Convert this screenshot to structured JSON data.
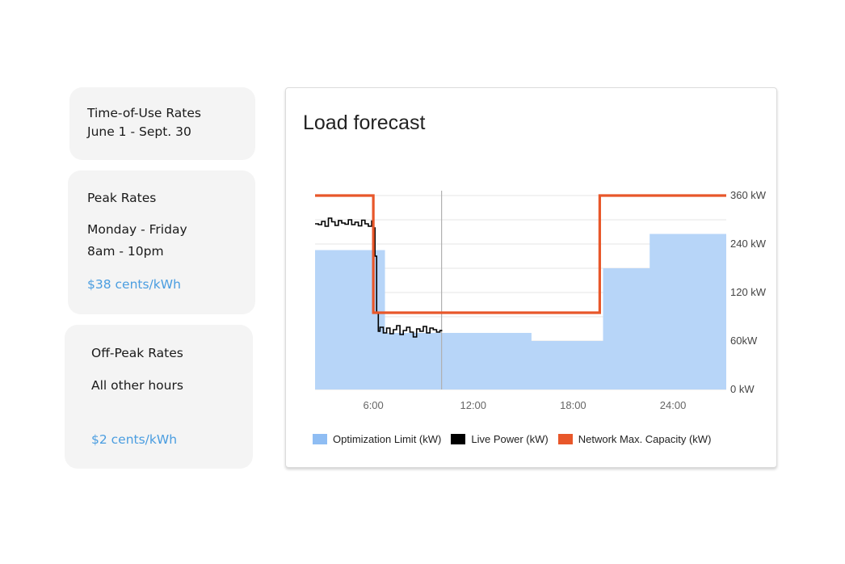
{
  "cards": {
    "tou": {
      "title": "Time-of-Use Rates",
      "dates": "June 1 - Sept. 30"
    },
    "peak": {
      "title": "Peak Rates",
      "days": "Monday - Friday",
      "hours": "8am - 10pm",
      "rate": "$38 cents/kWh"
    },
    "off_peak": {
      "title": "Off-Peak Rates",
      "hours": "All other hours",
      "rate": "$2 cents/kWh"
    }
  },
  "colors": {
    "optimization_fill": "#b7d5f8",
    "optimization_swatch": "#8fbdf3",
    "live_power": "#000000",
    "network_capacity": "#e8572a",
    "grid": "#e6e6e6",
    "now_line": "#b0b0b0",
    "rate_text": "#4a9de0"
  },
  "chart_data": {
    "type": "line",
    "title": "Load forecast",
    "xlim": [
      2.5,
      27.2
    ],
    "ylim": [
      0,
      360
    ],
    "x_ticks": [
      6,
      12,
      18,
      24
    ],
    "x_tick_labels": [
      "6:00",
      "12:00",
      "18:00",
      "24:00"
    ],
    "y_ticks": [
      0,
      60,
      120,
      240,
      360
    ],
    "y_tick_labels": [
      "0 kW",
      "60kW",
      "120 kW",
      "240 kW",
      "360 kW"
    ],
    "y_axis_position": "right",
    "grid": true,
    "now_marker_x": 10.1,
    "legend": {
      "placement": "bottom"
    },
    "series": [
      {
        "name": "Optimization Limit (kW)",
        "style": "step-area",
        "x": [
          2.5,
          3.2,
          6.7,
          15.5,
          19.8,
          22.6,
          27.2
        ],
        "values": [
          225,
          225,
          70,
          60,
          180,
          265,
          265
        ]
      },
      {
        "name": "Live Power (kW)",
        "style": "step-line",
        "x": [
          2.5,
          2.7,
          2.9,
          3.1,
          3.3,
          3.5,
          3.7,
          3.9,
          4.1,
          4.3,
          4.5,
          4.7,
          4.9,
          5.1,
          5.3,
          5.5,
          5.7,
          5.9,
          6.0,
          6.1,
          6.2,
          6.3,
          6.4,
          6.6,
          6.8,
          7.0,
          7.2,
          7.4,
          7.6,
          7.8,
          8.0,
          8.2,
          8.4,
          8.6,
          8.8,
          9.0,
          9.2,
          9.4,
          9.6,
          9.8,
          10.0,
          10.1
        ],
        "values": [
          290,
          288,
          296,
          284,
          304,
          295,
          286,
          298,
          292,
          289,
          300,
          288,
          294,
          285,
          299,
          290,
          284,
          297,
          280,
          210,
          95,
          72,
          77,
          70,
          76,
          69,
          74,
          79,
          68,
          73,
          77,
          71,
          65,
          75,
          72,
          78,
          70,
          76,
          74,
          71,
          73,
          72
        ]
      },
      {
        "name": "Network Max. Capacity (kW)",
        "style": "step-line",
        "x": [
          2.5,
          6.0,
          6.0,
          19.6,
          19.6,
          27.2
        ],
        "values": [
          360,
          360,
          95,
          95,
          360,
          360
        ]
      }
    ]
  }
}
